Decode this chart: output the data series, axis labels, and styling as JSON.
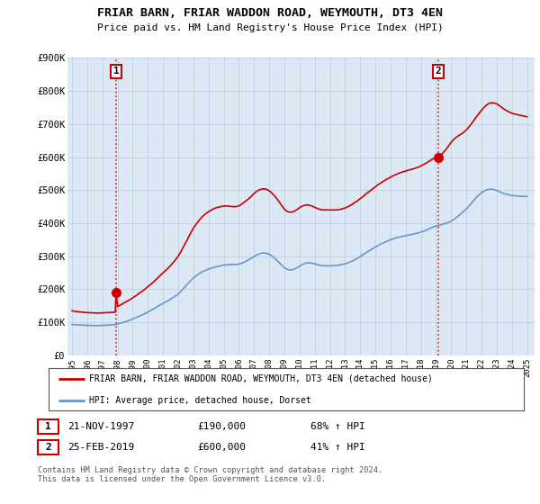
{
  "title": "FRIAR BARN, FRIAR WADDON ROAD, WEYMOUTH, DT3 4EN",
  "subtitle": "Price paid vs. HM Land Registry's House Price Index (HPI)",
  "ylim": [
    0,
    900000
  ],
  "yticks": [
    0,
    100000,
    200000,
    300000,
    400000,
    500000,
    600000,
    700000,
    800000,
    900000
  ],
  "ytick_labels": [
    "£0",
    "£100K",
    "£200K",
    "£300K",
    "£400K",
    "£500K",
    "£600K",
    "£700K",
    "£800K",
    "£900K"
  ],
  "xlim_start": 1994.7,
  "xlim_end": 2025.5,
  "xticks": [
    1995,
    1996,
    1997,
    1998,
    1999,
    2000,
    2001,
    2002,
    2003,
    2004,
    2005,
    2006,
    2007,
    2008,
    2009,
    2010,
    2011,
    2012,
    2013,
    2014,
    2015,
    2016,
    2017,
    2018,
    2019,
    2020,
    2021,
    2022,
    2023,
    2024,
    2025
  ],
  "red_line_color": "#cc0000",
  "blue_line_color": "#6699cc",
  "chart_bg_color": "#dde8f5",
  "marker_color": "#cc0000",
  "dashed_color": "#cc0000",
  "legend_label_red": "FRIAR BARN, FRIAR WADDON ROAD, WEYMOUTH, DT3 4EN (detached house)",
  "legend_label_blue": "HPI: Average price, detached house, Dorset",
  "sale1_year": 1997.9,
  "sale1_price": 190000,
  "sale1_label": "1",
  "sale1_text": "21-NOV-1997",
  "sale1_amount": "£190,000",
  "sale1_hpi": "68% ↑ HPI",
  "sale2_year": 2019.15,
  "sale2_price": 600000,
  "sale2_label": "2",
  "sale2_text": "25-FEB-2019",
  "sale2_amount": "£600,000",
  "sale2_hpi": "41% ↑ HPI",
  "footer": "Contains HM Land Registry data © Crown copyright and database right 2024.\nThis data is licensed under the Open Government Licence v3.0.",
  "background_color": "#ffffff",
  "grid_color": "#bbccdd",
  "hpi_red": [
    [
      1995.0,
      135000
    ],
    [
      1995.2,
      133000
    ],
    [
      1995.4,
      132000
    ],
    [
      1995.6,
      131000
    ],
    [
      1995.8,
      130000
    ],
    [
      1996.0,
      129000
    ],
    [
      1996.2,
      129000
    ],
    [
      1996.4,
      128500
    ],
    [
      1996.6,
      128000
    ],
    [
      1996.8,
      128000
    ],
    [
      1997.0,
      128500
    ],
    [
      1997.2,
      129000
    ],
    [
      1997.4,
      129500
    ],
    [
      1997.6,
      130000
    ],
    [
      1997.85,
      130500
    ],
    [
      1997.9,
      190000
    ],
    [
      1998.0,
      148000
    ],
    [
      1998.2,
      152000
    ],
    [
      1998.4,
      158000
    ],
    [
      1998.6,
      163000
    ],
    [
      1998.8,
      168000
    ],
    [
      1999.0,
      174000
    ],
    [
      1999.2,
      180000
    ],
    [
      1999.4,
      187000
    ],
    [
      1999.6,
      193000
    ],
    [
      1999.8,
      200000
    ],
    [
      2000.0,
      208000
    ],
    [
      2000.2,
      215000
    ],
    [
      2000.4,
      223000
    ],
    [
      2000.6,
      232000
    ],
    [
      2000.8,
      241000
    ],
    [
      2001.0,
      250000
    ],
    [
      2001.2,
      258000
    ],
    [
      2001.4,
      267000
    ],
    [
      2001.6,
      277000
    ],
    [
      2001.8,
      288000
    ],
    [
      2002.0,
      300000
    ],
    [
      2002.2,
      316000
    ],
    [
      2002.4,
      333000
    ],
    [
      2002.6,
      350000
    ],
    [
      2002.8,
      368000
    ],
    [
      2003.0,
      385000
    ],
    [
      2003.2,
      398000
    ],
    [
      2003.4,
      410000
    ],
    [
      2003.6,
      420000
    ],
    [
      2003.8,
      428000
    ],
    [
      2004.0,
      435000
    ],
    [
      2004.2,
      440000
    ],
    [
      2004.4,
      445000
    ],
    [
      2004.6,
      448000
    ],
    [
      2004.8,
      450000
    ],
    [
      2005.0,
      452000
    ],
    [
      2005.2,
      452000
    ],
    [
      2005.4,
      451000
    ],
    [
      2005.6,
      450000
    ],
    [
      2005.8,
      450000
    ],
    [
      2006.0,
      452000
    ],
    [
      2006.2,
      458000
    ],
    [
      2006.4,
      465000
    ],
    [
      2006.6,
      472000
    ],
    [
      2006.8,
      480000
    ],
    [
      2007.0,
      490000
    ],
    [
      2007.2,
      497000
    ],
    [
      2007.4,
      502000
    ],
    [
      2007.6,
      504000
    ],
    [
      2007.8,
      503000
    ],
    [
      2008.0,
      498000
    ],
    [
      2008.2,
      490000
    ],
    [
      2008.4,
      480000
    ],
    [
      2008.6,
      468000
    ],
    [
      2008.8,
      455000
    ],
    [
      2009.0,
      442000
    ],
    [
      2009.2,
      435000
    ],
    [
      2009.4,
      433000
    ],
    [
      2009.6,
      435000
    ],
    [
      2009.8,
      440000
    ],
    [
      2010.0,
      447000
    ],
    [
      2010.2,
      452000
    ],
    [
      2010.4,
      455000
    ],
    [
      2010.6,
      455000
    ],
    [
      2010.8,
      452000
    ],
    [
      2011.0,
      448000
    ],
    [
      2011.2,
      444000
    ],
    [
      2011.4,
      441000
    ],
    [
      2011.6,
      440000
    ],
    [
      2011.8,
      440000
    ],
    [
      2012.0,
      440000
    ],
    [
      2012.2,
      440000
    ],
    [
      2012.4,
      440000
    ],
    [
      2012.6,
      441000
    ],
    [
      2012.8,
      443000
    ],
    [
      2013.0,
      446000
    ],
    [
      2013.2,
      450000
    ],
    [
      2013.4,
      455000
    ],
    [
      2013.6,
      461000
    ],
    [
      2013.8,
      467000
    ],
    [
      2014.0,
      474000
    ],
    [
      2014.2,
      481000
    ],
    [
      2014.4,
      489000
    ],
    [
      2014.6,
      496000
    ],
    [
      2014.8,
      503000
    ],
    [
      2015.0,
      510000
    ],
    [
      2015.2,
      517000
    ],
    [
      2015.4,
      523000
    ],
    [
      2015.6,
      529000
    ],
    [
      2015.8,
      534000
    ],
    [
      2016.0,
      539000
    ],
    [
      2016.2,
      544000
    ],
    [
      2016.4,
      548000
    ],
    [
      2016.6,
      552000
    ],
    [
      2016.8,
      555000
    ],
    [
      2017.0,
      558000
    ],
    [
      2017.2,
      561000
    ],
    [
      2017.4,
      563000
    ],
    [
      2017.6,
      566000
    ],
    [
      2017.8,
      569000
    ],
    [
      2018.0,
      573000
    ],
    [
      2018.2,
      578000
    ],
    [
      2018.4,
      583000
    ],
    [
      2018.6,
      589000
    ],
    [
      2018.8,
      595000
    ],
    [
      2019.0,
      598000
    ],
    [
      2019.15,
      600000
    ],
    [
      2019.2,
      602000
    ],
    [
      2019.4,
      610000
    ],
    [
      2019.6,
      620000
    ],
    [
      2019.8,
      632000
    ],
    [
      2020.0,
      645000
    ],
    [
      2020.2,
      655000
    ],
    [
      2020.4,
      662000
    ],
    [
      2020.6,
      668000
    ],
    [
      2020.8,
      674000
    ],
    [
      2021.0,
      682000
    ],
    [
      2021.2,
      693000
    ],
    [
      2021.4,
      705000
    ],
    [
      2021.6,
      718000
    ],
    [
      2021.8,
      730000
    ],
    [
      2022.0,
      742000
    ],
    [
      2022.2,
      752000
    ],
    [
      2022.4,
      760000
    ],
    [
      2022.6,
      764000
    ],
    [
      2022.8,
      764000
    ],
    [
      2023.0,
      761000
    ],
    [
      2023.2,
      755000
    ],
    [
      2023.4,
      748000
    ],
    [
      2023.6,
      742000
    ],
    [
      2023.8,
      737000
    ],
    [
      2024.0,
      733000
    ],
    [
      2024.2,
      730000
    ],
    [
      2024.4,
      728000
    ],
    [
      2024.6,
      726000
    ],
    [
      2024.8,
      724000
    ],
    [
      2025.0,
      722000
    ]
  ],
  "hpi_blue": [
    [
      1995.0,
      93000
    ],
    [
      1995.2,
      92500
    ],
    [
      1995.4,
      92000
    ],
    [
      1995.6,
      91500
    ],
    [
      1995.8,
      91000
    ],
    [
      1996.0,
      90500
    ],
    [
      1996.2,
      90200
    ],
    [
      1996.4,
      90000
    ],
    [
      1996.6,
      90000
    ],
    [
      1996.8,
      90200
    ],
    [
      1997.0,
      90500
    ],
    [
      1997.2,
      91000
    ],
    [
      1997.4,
      91500
    ],
    [
      1997.6,
      92000
    ],
    [
      1997.8,
      92500
    ],
    [
      1998.0,
      95000
    ],
    [
      1998.2,
      97500
    ],
    [
      1998.4,
      100000
    ],
    [
      1998.6,
      103000
    ],
    [
      1998.8,
      106000
    ],
    [
      1999.0,
      110000
    ],
    [
      1999.2,
      114000
    ],
    [
      1999.4,
      118000
    ],
    [
      1999.6,
      122000
    ],
    [
      1999.8,
      126000
    ],
    [
      2000.0,
      131000
    ],
    [
      2000.2,
      136000
    ],
    [
      2000.4,
      141000
    ],
    [
      2000.6,
      147000
    ],
    [
      2000.8,
      152000
    ],
    [
      2001.0,
      157000
    ],
    [
      2001.2,
      162000
    ],
    [
      2001.4,
      167000
    ],
    [
      2001.6,
      173000
    ],
    [
      2001.8,
      179000
    ],
    [
      2002.0,
      185000
    ],
    [
      2002.2,
      195000
    ],
    [
      2002.4,
      205000
    ],
    [
      2002.6,
      215000
    ],
    [
      2002.8,
      225000
    ],
    [
      2003.0,
      234000
    ],
    [
      2003.2,
      241000
    ],
    [
      2003.4,
      248000
    ],
    [
      2003.6,
      253000
    ],
    [
      2003.8,
      257000
    ],
    [
      2004.0,
      261000
    ],
    [
      2004.2,
      264000
    ],
    [
      2004.4,
      267000
    ],
    [
      2004.6,
      269000
    ],
    [
      2004.8,
      271000
    ],
    [
      2005.0,
      273000
    ],
    [
      2005.2,
      274000
    ],
    [
      2005.4,
      275000
    ],
    [
      2005.6,
      275000
    ],
    [
      2005.8,
      275000
    ],
    [
      2006.0,
      276000
    ],
    [
      2006.2,
      279000
    ],
    [
      2006.4,
      283000
    ],
    [
      2006.6,
      288000
    ],
    [
      2006.8,
      293000
    ],
    [
      2007.0,
      299000
    ],
    [
      2007.2,
      304000
    ],
    [
      2007.4,
      308000
    ],
    [
      2007.6,
      310000
    ],
    [
      2007.8,
      309000
    ],
    [
      2008.0,
      306000
    ],
    [
      2008.2,
      300000
    ],
    [
      2008.4,
      292000
    ],
    [
      2008.6,
      283000
    ],
    [
      2008.8,
      274000
    ],
    [
      2009.0,
      265000
    ],
    [
      2009.2,
      260000
    ],
    [
      2009.4,
      258000
    ],
    [
      2009.6,
      260000
    ],
    [
      2009.8,
      264000
    ],
    [
      2010.0,
      270000
    ],
    [
      2010.2,
      275000
    ],
    [
      2010.4,
      279000
    ],
    [
      2010.6,
      280000
    ],
    [
      2010.8,
      279000
    ],
    [
      2011.0,
      277000
    ],
    [
      2011.2,
      274000
    ],
    [
      2011.4,
      272000
    ],
    [
      2011.6,
      271000
    ],
    [
      2011.8,
      271000
    ],
    [
      2012.0,
      271000
    ],
    [
      2012.2,
      271000
    ],
    [
      2012.4,
      272000
    ],
    [
      2012.6,
      273000
    ],
    [
      2012.8,
      275000
    ],
    [
      2013.0,
      277000
    ],
    [
      2013.2,
      280000
    ],
    [
      2013.4,
      284000
    ],
    [
      2013.6,
      288000
    ],
    [
      2013.8,
      293000
    ],
    [
      2014.0,
      299000
    ],
    [
      2014.2,
      305000
    ],
    [
      2014.4,
      311000
    ],
    [
      2014.6,
      317000
    ],
    [
      2014.8,
      322000
    ],
    [
      2015.0,
      328000
    ],
    [
      2015.2,
      333000
    ],
    [
      2015.4,
      338000
    ],
    [
      2015.6,
      342000
    ],
    [
      2015.8,
      346000
    ],
    [
      2016.0,
      350000
    ],
    [
      2016.2,
      353000
    ],
    [
      2016.4,
      356000
    ],
    [
      2016.6,
      358000
    ],
    [
      2016.8,
      360000
    ],
    [
      2017.0,
      362000
    ],
    [
      2017.2,
      364000
    ],
    [
      2017.4,
      366000
    ],
    [
      2017.6,
      368000
    ],
    [
      2017.8,
      370000
    ],
    [
      2018.0,
      373000
    ],
    [
      2018.2,
      376000
    ],
    [
      2018.4,
      380000
    ],
    [
      2018.6,
      384000
    ],
    [
      2018.8,
      388000
    ],
    [
      2019.0,
      391000
    ],
    [
      2019.2,
      393000
    ],
    [
      2019.4,
      396000
    ],
    [
      2019.6,
      399000
    ],
    [
      2019.8,
      402000
    ],
    [
      2020.0,
      406000
    ],
    [
      2020.2,
      412000
    ],
    [
      2020.4,
      419000
    ],
    [
      2020.6,
      427000
    ],
    [
      2020.8,
      435000
    ],
    [
      2021.0,
      443000
    ],
    [
      2021.2,
      453000
    ],
    [
      2021.4,
      464000
    ],
    [
      2021.6,
      475000
    ],
    [
      2021.8,
      484000
    ],
    [
      2022.0,
      492000
    ],
    [
      2022.2,
      498000
    ],
    [
      2022.4,
      502000
    ],
    [
      2022.6,
      503000
    ],
    [
      2022.8,
      502000
    ],
    [
      2023.0,
      499000
    ],
    [
      2023.2,
      495000
    ],
    [
      2023.4,
      491000
    ],
    [
      2023.6,
      488000
    ],
    [
      2023.8,
      486000
    ],
    [
      2024.0,
      484000
    ],
    [
      2024.2,
      483000
    ],
    [
      2024.4,
      482000
    ],
    [
      2024.6,
      481000
    ],
    [
      2024.8,
      481000
    ],
    [
      2025.0,
      481000
    ]
  ]
}
